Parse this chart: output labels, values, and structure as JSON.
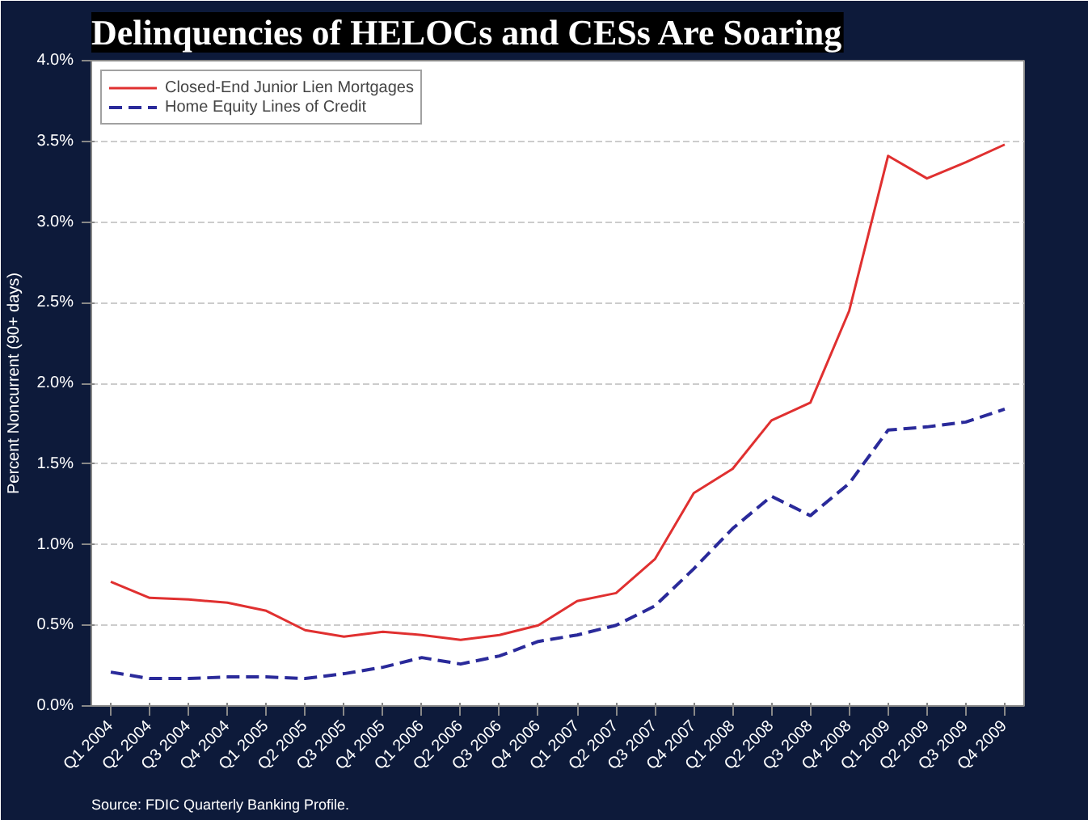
{
  "chart_data": {
    "type": "line",
    "title": "Delinquencies of HELOCs and CESs Are Soaring",
    "ylabel": "Percent Noncurrent (90+ days)",
    "categories": [
      "Q1 2004",
      "Q2 2004",
      "Q3 2004",
      "Q4 2004",
      "Q1 2005",
      "Q2 2005",
      "Q3 2005",
      "Q4 2005",
      "Q1 2006",
      "Q2 2006",
      "Q3 2006",
      "Q4 2006",
      "Q1 2007",
      "Q2 2007",
      "Q3 2007",
      "Q4 2007",
      "Q1 2008",
      "Q2 2008",
      "Q3 2008",
      "Q4 2008",
      "Q1 2009",
      "Q2 2009",
      "Q3 2009",
      "Q4 2009"
    ],
    "series": [
      {
        "name": "Closed-End Junior Lien Mortgages",
        "color": "#e03030",
        "line_style": "solid",
        "values": [
          0.77,
          0.67,
          0.66,
          0.64,
          0.59,
          0.47,
          0.43,
          0.46,
          0.44,
          0.41,
          0.44,
          0.5,
          0.65,
          0.7,
          0.91,
          1.32,
          1.47,
          1.77,
          1.88,
          2.45,
          3.41,
          3.27,
          3.37,
          3.48
        ]
      },
      {
        "name": "Home Equity Lines of Credit",
        "color": "#2a2a9a",
        "line_style": "dashed",
        "values": [
          0.21,
          0.17,
          0.17,
          0.18,
          0.18,
          0.17,
          0.2,
          0.24,
          0.3,
          0.26,
          0.31,
          0.4,
          0.44,
          0.5,
          0.62,
          0.85,
          1.1,
          1.3,
          1.18,
          1.38,
          1.71,
          1.73,
          1.76,
          1.84
        ]
      }
    ],
    "ylim": [
      0,
      4
    ],
    "yticks": [
      {
        "value": 0,
        "label": "0.0%"
      },
      {
        "value": 0.5,
        "label": "0.5%"
      },
      {
        "value": 1,
        "label": "1.0%"
      },
      {
        "value": 1.5,
        "label": "1.5%"
      },
      {
        "value": 2,
        "label": "2.0%"
      },
      {
        "value": 2.5,
        "label": "2.5%"
      },
      {
        "value": 3,
        "label": "3.0%"
      },
      {
        "value": 3.5,
        "label": "3.5%"
      },
      {
        "value": 4,
        "label": "4.0%"
      }
    ],
    "grid": "y",
    "legend": "top left",
    "marker": "none",
    "annotations": [
      "Source: FDIC Quarterly Banking Profile."
    ]
  }
}
